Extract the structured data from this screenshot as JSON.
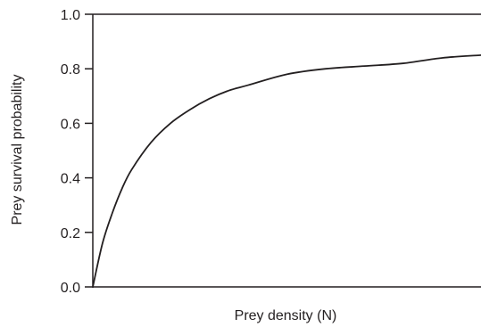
{
  "chart_data": {
    "type": "line",
    "title": "",
    "xlabel": "Prey density (N)",
    "ylabel": "Prey survival probability",
    "xlim": [
      0,
      10
    ],
    "ylim": [
      0,
      1.0
    ],
    "x_ticks_shown": false,
    "y_ticks": [
      0.0,
      0.2,
      0.4,
      0.6,
      0.8,
      1.0
    ],
    "y_tick_labels": [
      "0.0",
      "0.2",
      "0.4",
      "0.6",
      "0.8",
      "1.0"
    ],
    "grid": false,
    "legend": "none",
    "series": [
      {
        "x": [
          0,
          0.25,
          0.5,
          0.75,
          1,
          1.5,
          2,
          2.5,
          3,
          3.5,
          4,
          5,
          6,
          7,
          8,
          9,
          10
        ],
        "y": [
          0.0,
          0.16,
          0.27,
          0.36,
          0.43,
          0.53,
          0.6,
          0.65,
          0.69,
          0.72,
          0.74,
          0.78,
          0.8,
          0.81,
          0.82,
          0.84,
          0.85
        ],
        "color": "#231f20"
      }
    ]
  }
}
